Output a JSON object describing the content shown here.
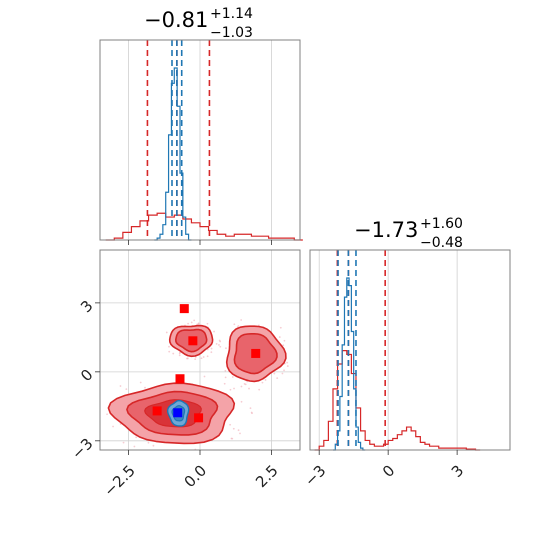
{
  "chart_data": [
    {
      "type": "histogram",
      "panel": "marginal-param-1",
      "title": {
        "value": "−0.81",
        "upper": "+1.14",
        "lower": "−1.03"
      },
      "x_range": [
        -3.5,
        3.5
      ],
      "xticks": [
        -2.5,
        0.0,
        2.5
      ],
      "tick_labels_shown": false,
      "grid": true,
      "series": [
        {
          "color": "#d62728",
          "bin_edges": [
            -3.3,
            -3.0,
            -2.7,
            -2.4,
            -2.1,
            -1.8,
            -1.5,
            -1.2,
            -0.9,
            -0.6,
            -0.3,
            0.0,
            0.3,
            0.6,
            0.9,
            1.2,
            1.5,
            1.8,
            2.1,
            2.4,
            2.7,
            3.0,
            3.3,
            3.6
          ],
          "heights": [
            0,
            0.01,
            0.04,
            0.07,
            0.1,
            0.13,
            0.14,
            0.12,
            0.13,
            0.11,
            0.09,
            0.07,
            0.05,
            0.03,
            0.02,
            0.03,
            0.03,
            0.02,
            0.02,
            0.01,
            0.01,
            0.01,
            0
          ],
          "quantile_lines": [
            -1.84,
            -0.81,
            0.33
          ]
        },
        {
          "color": "#1f77b4",
          "bin_edges": [
            -1.6,
            -1.5,
            -1.4,
            -1.3,
            -1.2,
            -1.1,
            -1.0,
            -0.9,
            -0.8,
            -0.7,
            -0.6,
            -0.5,
            -0.4,
            -0.3
          ],
          "heights": [
            0,
            0.01,
            0.03,
            0.08,
            0.25,
            0.55,
            0.82,
            0.9,
            0.7,
            0.35,
            0.12,
            0.03,
            0
          ],
          "quantile_lines": [
            -0.98,
            -0.81,
            -0.64
          ]
        }
      ]
    },
    {
      "type": "histogram",
      "panel": "marginal-param-2",
      "title": {
        "value": "−1.73",
        "upper": "+1.60",
        "lower": "−0.48"
      },
      "x_range": [
        -3.4,
        5.3
      ],
      "xticks": [
        -3,
        0,
        3
      ],
      "xtick_labels": [
        "−3",
        "0",
        "3"
      ],
      "grid": true,
      "series": [
        {
          "color": "#d62728",
          "bin_edges": [
            -3.2,
            -3.0,
            -2.8,
            -2.6,
            -2.4,
            -2.2,
            -2.0,
            -1.8,
            -1.6,
            -1.4,
            -1.2,
            -1.0,
            -0.8,
            -0.6,
            -0.4,
            -0.2,
            0.0,
            0.2,
            0.4,
            0.6,
            0.8,
            1.0,
            1.2,
            1.4,
            1.6,
            1.8,
            2.0,
            2.2,
            2.4,
            2.6,
            2.8,
            3.0,
            3.2,
            3.4,
            3.6,
            3.8,
            4.0
          ],
          "heights": [
            0,
            0.02,
            0.05,
            0.15,
            0.32,
            0.45,
            0.52,
            0.5,
            0.4,
            0.22,
            0.1,
            0.05,
            0.03,
            0.02,
            0.02,
            0.03,
            0.05,
            0.06,
            0.08,
            0.1,
            0.12,
            0.1,
            0.07,
            0.04,
            0.03,
            0.02,
            0.02,
            0.01,
            0.01,
            0.01,
            0.01,
            0.01,
            0.01,
            0.005,
            0.005,
            0
          ],
          "quantile_lines": [
            -2.21,
            -1.73,
            -0.13
          ]
        },
        {
          "color": "#1f77b4",
          "bin_edges": [
            -2.4,
            -2.3,
            -2.2,
            -2.1,
            -2.0,
            -1.9,
            -1.8,
            -1.7,
            -1.6,
            -1.5,
            -1.4,
            -1.3,
            -1.2,
            -1.1,
            -1.0
          ],
          "heights": [
            0,
            0.03,
            0.1,
            0.28,
            0.55,
            0.8,
            0.9,
            0.86,
            0.62,
            0.32,
            0.12,
            0.04,
            0.01,
            0
          ],
          "quantile_lines": [
            -2.18,
            -1.73,
            -1.4
          ]
        }
      ]
    },
    {
      "type": "contour",
      "panel": "joint-param-1-param-2",
      "x_range": [
        -3.5,
        3.5
      ],
      "y_range": [
        -3.4,
        5.3
      ],
      "xticks": [
        -2.5,
        0.0,
        2.5
      ],
      "xtick_labels": [
        "−2.5",
        "0.0",
        "2.5"
      ],
      "yticks": [
        -3,
        0,
        3
      ],
      "ytick_labels": [
        "−3",
        "0",
        "3"
      ],
      "grid": true,
      "red_modes": [
        {
          "cx": -0.9,
          "cy": -1.8,
          "rx": 2.1,
          "ry": 1.3
        },
        {
          "cx": -0.3,
          "cy": 1.4,
          "rx": 0.75,
          "ry": 0.65
        },
        {
          "cx": 1.9,
          "cy": 0.8,
          "rx": 1.0,
          "ry": 1.2
        }
      ],
      "blue_mode": {
        "cx": -0.75,
        "cy": -1.8,
        "rx": 0.35,
        "ry": 0.55
      },
      "red_markers": [
        {
          "x": -0.55,
          "y": 2.75
        },
        {
          "x": -0.25,
          "y": 1.35
        },
        {
          "x": 1.95,
          "y": 0.8
        },
        {
          "x": -0.7,
          "y": -0.3
        },
        {
          "x": -1.5,
          "y": -1.7
        },
        {
          "x": -0.05,
          "y": -2.0
        }
      ],
      "blue_marker": {
        "x": -0.78,
        "y": -1.78
      }
    }
  ]
}
